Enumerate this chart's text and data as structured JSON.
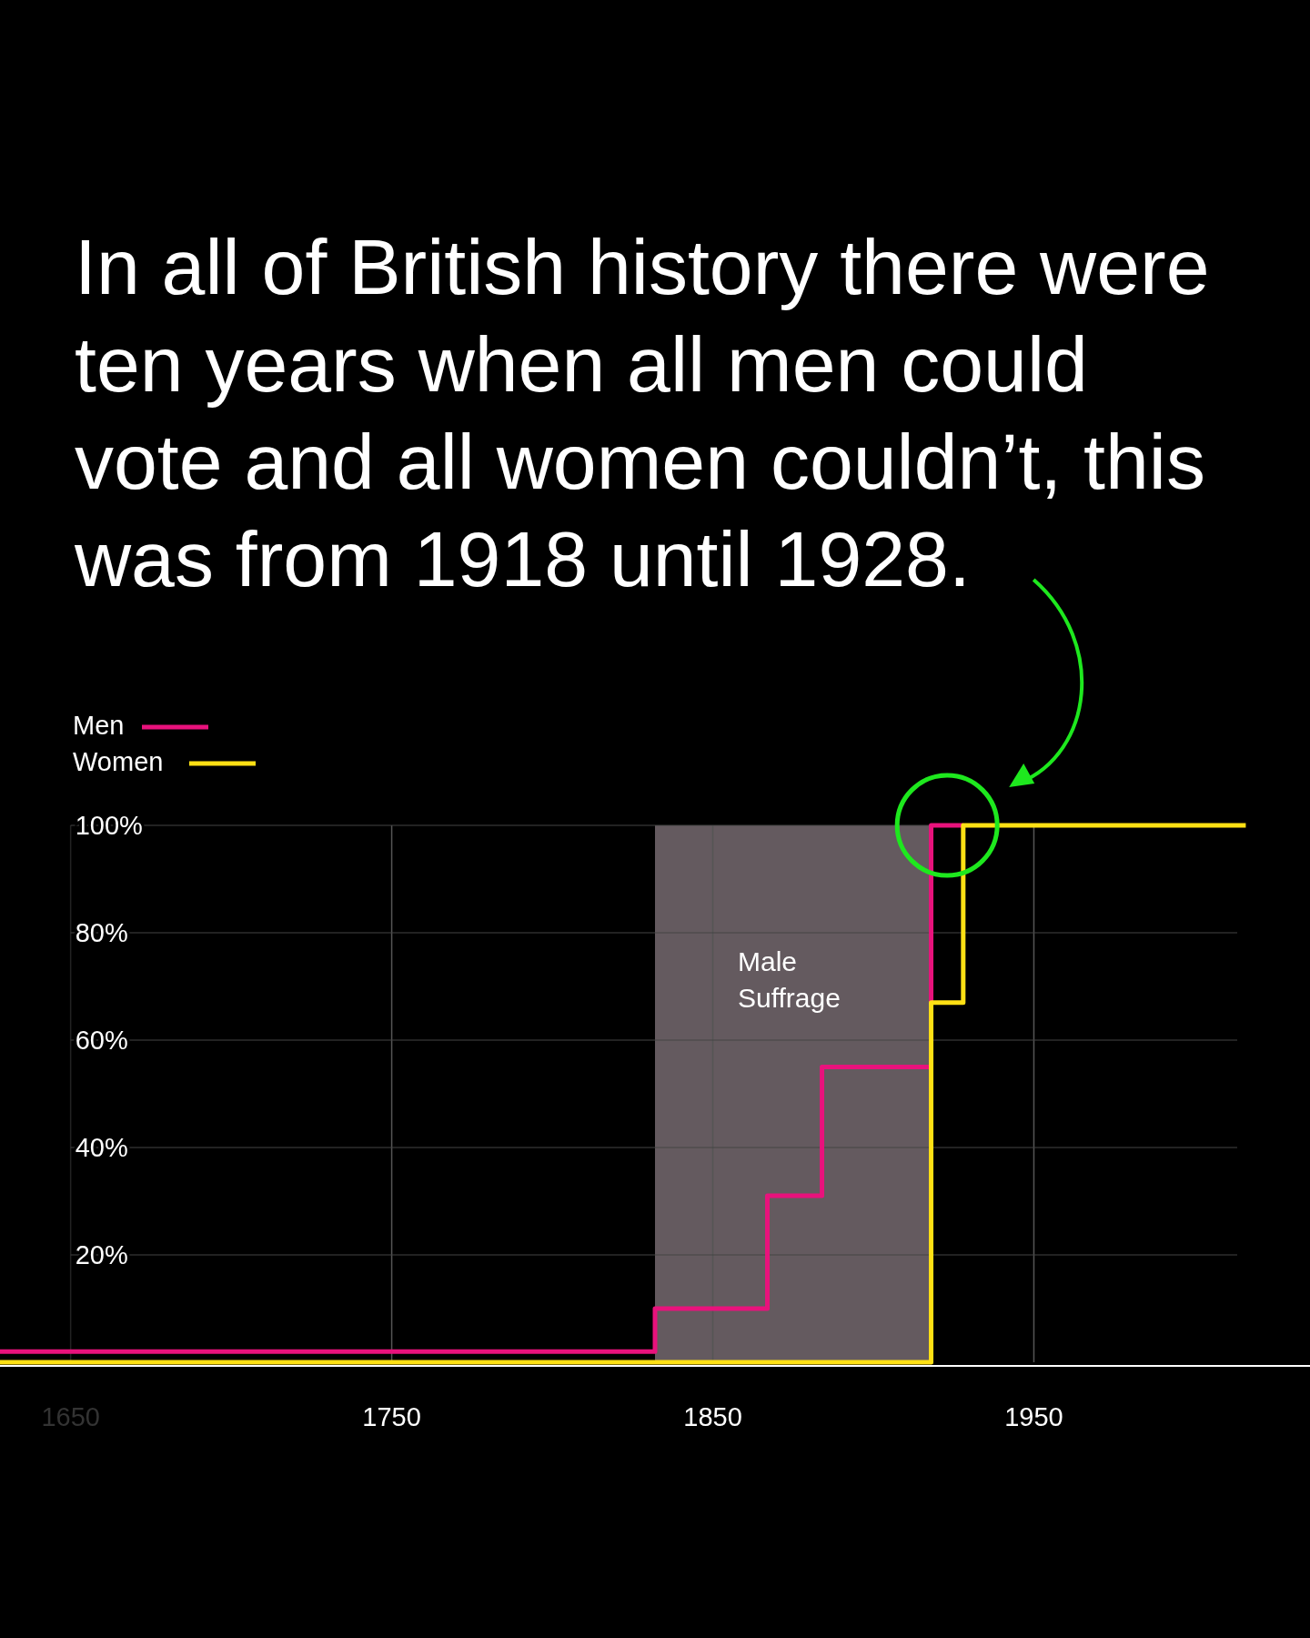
{
  "chart_data": {
    "type": "step",
    "title": "In all of British history there were ten years when all men could vote and all women couldn’t, this was from 1918 until 1928.",
    "xlim": [
      1628,
      2036
    ],
    "xticks": [
      1650,
      1750,
      1850,
      1950
    ],
    "ylim": [
      0,
      100
    ],
    "yticks": [
      {
        "value": 20,
        "label": "20%"
      },
      {
        "value": 40,
        "label": "40%"
      },
      {
        "value": 60,
        "label": "60%"
      },
      {
        "value": 80,
        "label": "80%"
      },
      {
        "value": 100,
        "label": "100%"
      }
    ],
    "grid": true,
    "legend": "top left",
    "series": [
      {
        "name": "Men",
        "color": "#e8127c",
        "x": [
          1628,
          1832,
          1867,
          1884,
          1918,
          1928
        ],
        "values": [
          2,
          10,
          31,
          55,
          100,
          100
        ]
      },
      {
        "name": "Women",
        "color": "#ffe014",
        "x": [
          1628,
          1918,
          1928,
          2016
        ],
        "values": [
          0,
          67,
          100,
          100
        ]
      }
    ],
    "bands": [
      {
        "axis": "x",
        "from": 1832,
        "to": 1918,
        "label": "Male Suffrage",
        "color": "#645a5f"
      }
    ]
  }
}
